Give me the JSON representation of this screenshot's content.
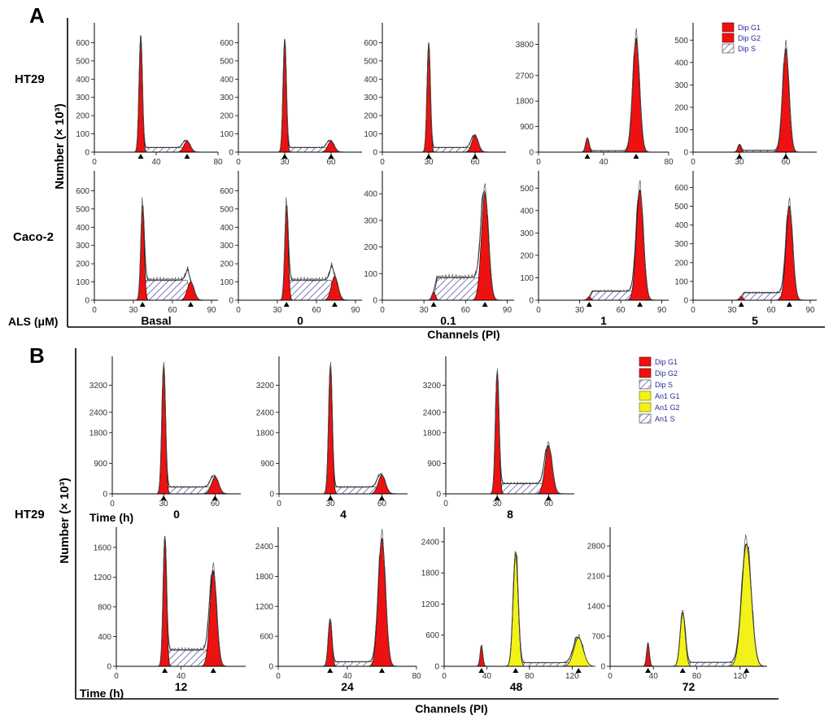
{
  "figure": {
    "panel_a": "A",
    "panel_b": "B",
    "ylabel": "Number (× 10³)",
    "xlabel": "Channels (PI)",
    "row_labels": [
      "HT29",
      "Caco-2",
      "HT29"
    ],
    "condition_label_a": "ALS (μM)",
    "condition_label_b1": "Time (h)",
    "condition_label_b2": "Time (h)",
    "legend_a": [
      "Dip G1",
      "Dip G2",
      "Dip S"
    ],
    "legend_b": [
      "Dip G1",
      "Dip G2",
      "Dip S",
      "An1 G1",
      "An1 G2",
      "An1 S"
    ]
  },
  "colors": {
    "diploid": "#ee1111",
    "aneuploid": "#f2f21a",
    "s_phase_hatch": "#5a5aa0",
    "line": "#222222"
  },
  "chart_data": [
    {
      "type": "area",
      "title": "Basal",
      "row": "HT29",
      "xlim": [
        0,
        80
      ],
      "xticks": [
        0,
        40,
        80
      ],
      "ylim": [
        0,
        700
      ],
      "yticks": [
        0,
        100,
        200,
        300,
        400,
        500,
        600
      ],
      "peaks": [
        {
          "phase": "Dip G1",
          "mean": 30,
          "height": 640
        },
        {
          "phase": "Dip G2",
          "mean": 60,
          "height": 60
        }
      ],
      "s_phase": {
        "range": [
          30,
          60
        ],
        "level": 25
      }
    },
    {
      "type": "area",
      "title": "0",
      "row": "HT29",
      "xlim": [
        0,
        80
      ],
      "xticks": [
        0,
        30,
        60
      ],
      "ylim": [
        0,
        700
      ],
      "yticks": [
        0,
        100,
        200,
        300,
        400,
        500,
        600
      ],
      "peaks": [
        {
          "phase": "Dip G1",
          "mean": 30,
          "height": 620
        },
        {
          "phase": "Dip G2",
          "mean": 60,
          "height": 60
        }
      ],
      "s_phase": {
        "range": [
          30,
          60
        ],
        "level": 25
      }
    },
    {
      "type": "area",
      "title": "0.1",
      "row": "HT29",
      "xlim": [
        0,
        80
      ],
      "xticks": [
        0,
        30,
        60
      ],
      "ylim": [
        0,
        700
      ],
      "yticks": [
        0,
        100,
        200,
        300,
        400,
        500,
        600
      ],
      "peaks": [
        {
          "phase": "Dip G1",
          "mean": 30,
          "height": 600
        },
        {
          "phase": "Dip G2",
          "mean": 60,
          "height": 90
        }
      ],
      "s_phase": {
        "range": [
          30,
          60
        ],
        "level": 25
      }
    },
    {
      "type": "area",
      "title": "1",
      "row": "HT29",
      "xlim": [
        0,
        80
      ],
      "xticks": [
        0,
        40,
        80
      ],
      "ylim": [
        0,
        4500
      ],
      "yticks": [
        0,
        900,
        1800,
        2700,
        3800
      ],
      "peaks": [
        {
          "phase": "Dip G1",
          "mean": 30,
          "height": 500
        },
        {
          "phase": "Dip G2",
          "mean": 60,
          "height": 4000
        }
      ],
      "s_phase": {
        "range": [
          30,
          60
        ],
        "level": 50
      }
    },
    {
      "type": "area",
      "title": "5",
      "row": "HT29",
      "xlim": [
        0,
        80
      ],
      "xticks": [
        0,
        30,
        60
      ],
      "ylim": [
        0,
        570
      ],
      "yticks": [
        0,
        100,
        200,
        300,
        400,
        500
      ],
      "peaks": [
        {
          "phase": "Dip G1",
          "mean": 30,
          "height": 35
        },
        {
          "phase": "Dip G2",
          "mean": 60,
          "height": 460
        }
      ],
      "s_phase": {
        "range": [
          30,
          60
        ],
        "level": 8
      }
    },
    {
      "type": "area",
      "title": "Basal",
      "row": "Caco-2",
      "xlim": [
        0,
        95
      ],
      "xticks": [
        0,
        30,
        60,
        90
      ],
      "ylim": [
        0,
        700
      ],
      "yticks": [
        0,
        100,
        200,
        300,
        400,
        500,
        600
      ],
      "peaks": [
        {
          "phase": "Dip G1",
          "mean": 37,
          "height": 520
        },
        {
          "phase": "Dip G2",
          "mean": 74,
          "height": 100
        }
      ],
      "s_phase": {
        "range": [
          37,
          74
        ],
        "level": 110
      }
    },
    {
      "type": "area",
      "title": "0",
      "row": "Caco-2",
      "xlim": [
        0,
        95
      ],
      "xticks": [
        0,
        30,
        60,
        90
      ],
      "ylim": [
        0,
        700
      ],
      "yticks": [
        0,
        100,
        200,
        300,
        400,
        500,
        600
      ],
      "peaks": [
        {
          "phase": "Dip G1",
          "mean": 37,
          "height": 520
        },
        {
          "phase": "Dip G2",
          "mean": 74,
          "height": 130
        }
      ],
      "s_phase": {
        "range": [
          37,
          74
        ],
        "level": 110
      }
    },
    {
      "type": "area",
      "title": "0.1",
      "row": "Caco-2",
      "xlim": [
        0,
        95
      ],
      "xticks": [
        0,
        30,
        60,
        90
      ],
      "ylim": [
        0,
        480
      ],
      "yticks": [
        0,
        100,
        200,
        300,
        400
      ],
      "peaks": [
        {
          "phase": "Dip G1",
          "mean": 37,
          "height": 30
        },
        {
          "phase": "Dip G2",
          "mean": 74,
          "height": 400
        }
      ],
      "s_phase": {
        "range": [
          37,
          74
        ],
        "level": 85
      }
    },
    {
      "type": "area",
      "title": "1",
      "row": "Caco-2",
      "xlim": [
        0,
        95
      ],
      "xticks": [
        0,
        30,
        60,
        90
      ],
      "ylim": [
        0,
        570
      ],
      "yticks": [
        0,
        100,
        200,
        300,
        400,
        500
      ],
      "peaks": [
        {
          "phase": "Dip G1",
          "mean": 37,
          "height": 15
        },
        {
          "phase": "Dip G2",
          "mean": 74,
          "height": 490
        }
      ],
      "s_phase": {
        "range": [
          37,
          74
        ],
        "level": 40
      }
    },
    {
      "type": "area",
      "title": "5",
      "row": "Caco-2",
      "xlim": [
        0,
        95
      ],
      "xticks": [
        0,
        30,
        60,
        90
      ],
      "ylim": [
        0,
        680
      ],
      "yticks": [
        0,
        100,
        200,
        300,
        400,
        500,
        600
      ],
      "peaks": [
        {
          "phase": "Dip G1",
          "mean": 37,
          "height": 20
        },
        {
          "phase": "Dip G2",
          "mean": 74,
          "height": 500
        }
      ],
      "s_phase": {
        "range": [
          37,
          74
        ],
        "level": 40
      }
    },
    {
      "type": "area",
      "title": "0",
      "row": "HT29",
      "xlim": [
        0,
        75
      ],
      "xticks": [
        0,
        30,
        60
      ],
      "ylim": [
        0,
        4000
      ],
      "yticks": [
        0,
        900,
        1800,
        2400,
        3200
      ],
      "peaks": [
        {
          "phase": "Dip G1",
          "mean": 30,
          "height": 3800
        },
        {
          "phase": "Dip G2",
          "mean": 60,
          "height": 500
        }
      ],
      "s_phase": {
        "range": [
          30,
          60
        ],
        "level": 200
      }
    },
    {
      "type": "area",
      "title": "4",
      "row": "HT29",
      "xlim": [
        0,
        75
      ],
      "xticks": [
        0,
        30,
        60
      ],
      "ylim": [
        0,
        4000
      ],
      "yticks": [
        0,
        900,
        1800,
        2400,
        3200
      ],
      "peaks": [
        {
          "phase": "Dip G1",
          "mean": 30,
          "height": 3800
        },
        {
          "phase": "Dip G2",
          "mean": 60,
          "height": 550
        }
      ],
      "s_phase": {
        "range": [
          30,
          60
        ],
        "level": 200
      }
    },
    {
      "type": "area",
      "title": "8",
      "row": "HT29",
      "xlim": [
        0,
        75
      ],
      "xticks": [
        0,
        30,
        60
      ],
      "ylim": [
        0,
        4000
      ],
      "yticks": [
        0,
        900,
        1800,
        2400,
        3200
      ],
      "peaks": [
        {
          "phase": "Dip G1",
          "mean": 30,
          "height": 3600
        },
        {
          "phase": "Dip G2",
          "mean": 60,
          "height": 1400
        }
      ],
      "s_phase": {
        "range": [
          30,
          60
        ],
        "level": 300
      }
    },
    {
      "type": "area",
      "title": "12",
      "row": "HT29",
      "xlim": [
        0,
        80
      ],
      "xticks": [
        0,
        40
      ],
      "ylim": [
        0,
        1850
      ],
      "yticks": [
        0,
        400,
        800,
        1200,
        1600
      ],
      "peaks": [
        {
          "phase": "Dip G1",
          "mean": 30,
          "height": 1750
        },
        {
          "phase": "Dip G2",
          "mean": 60,
          "height": 1280
        }
      ],
      "s_phase": {
        "range": [
          30,
          60
        ],
        "level": 220
      }
    },
    {
      "type": "area",
      "title": "24",
      "row": "HT29",
      "xlim": [
        0,
        80
      ],
      "xticks": [
        0,
        40,
        80
      ],
      "ylim": [
        0,
        2750
      ],
      "yticks": [
        0,
        600,
        1200,
        1800,
        2400
      ],
      "peaks": [
        {
          "phase": "Dip G1",
          "mean": 30,
          "height": 950
        },
        {
          "phase": "Dip G2",
          "mean": 60,
          "height": 2550
        }
      ],
      "s_phase": {
        "range": [
          30,
          60
        ],
        "level": 90
      }
    },
    {
      "type": "area",
      "title": "48",
      "row": "HT29",
      "xlim": [
        0,
        135
      ],
      "xticks": [
        0,
        40,
        80,
        120
      ],
      "ylim": [
        0,
        2650
      ],
      "yticks": [
        0,
        600,
        1200,
        1800,
        2400
      ],
      "peaks": [
        {
          "phase": "Dip G1",
          "mean": 35,
          "height": 400
        },
        {
          "phase": "An1 G1",
          "mean": 67,
          "height": 2200
        },
        {
          "phase": "An1 G2",
          "mean": 126,
          "height": 550
        }
      ],
      "s_phase": {
        "range": [
          67,
          126
        ],
        "level": 70
      }
    },
    {
      "type": "area",
      "title": "72",
      "row": "HT29",
      "xlim": [
        0,
        145
      ],
      "xticks": [
        0,
        40,
        80,
        120
      ],
      "ylim": [
        0,
        3200
      ],
      "yticks": [
        0,
        700,
        1400,
        2100,
        2800
      ],
      "peaks": [
        {
          "phase": "Dip G1",
          "mean": 35,
          "height": 550
        },
        {
          "phase": "An1 G1",
          "mean": 67,
          "height": 1250
        },
        {
          "phase": "An1 G2",
          "mean": 126,
          "height": 2850
        }
      ],
      "s_phase": {
        "range": [
          67,
          126
        ],
        "level": 90
      }
    }
  ]
}
